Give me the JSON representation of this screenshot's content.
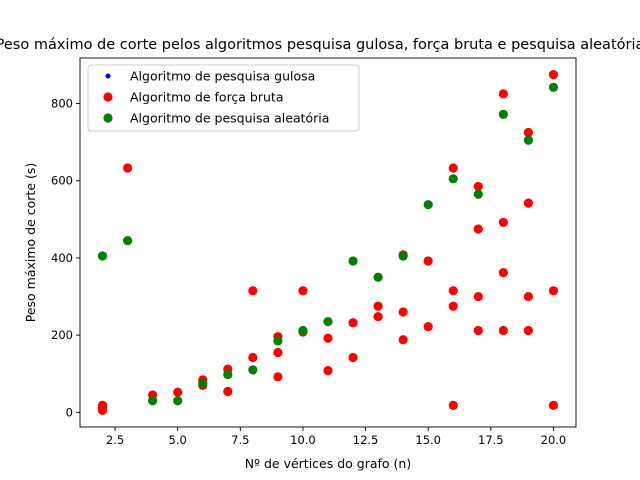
{
  "chart_data": {
    "type": "scatter",
    "title": "Peso máximo de corte pelos algoritmos pesquisa gulosa, força bruta e pesquisa aleatória",
    "xlabel": "Nº de vértices do grafo (n)",
    "ylabel": "Peso máximo de corte (s)",
    "xlim": [
      1.1,
      20.9
    ],
    "ylim": [
      -38,
      918
    ],
    "xticks": [
      2.5,
      5.0,
      7.5,
      10.0,
      12.5,
      15.0,
      17.5,
      20.0
    ],
    "xtick_labels": [
      "2.5",
      "5.0",
      "7.5",
      "10.0",
      "12.5",
      "15.0",
      "17.5",
      "20.0"
    ],
    "yticks": [
      0,
      200,
      400,
      600,
      800
    ],
    "ytick_labels": [
      "0",
      "200",
      "400",
      "600",
      "800"
    ],
    "grid": false,
    "legend_position": "upper-left",
    "series": [
      {
        "name": "Algoritmo de pesquisa gulosa",
        "color": "#0000ff",
        "marker_size": "small",
        "points": []
      },
      {
        "name": "Algoritmo de força bruta",
        "color": "#ff0000",
        "marker_size": "large",
        "points": [
          [
            2,
            18
          ],
          [
            2,
            12
          ],
          [
            2,
            5
          ],
          [
            3,
            633
          ],
          [
            4,
            45
          ],
          [
            5,
            52
          ],
          [
            6,
            84
          ],
          [
            6,
            70
          ],
          [
            7,
            112
          ],
          [
            7,
            54
          ],
          [
            8,
            142
          ],
          [
            8,
            315
          ],
          [
            9,
            196
          ],
          [
            9,
            155
          ],
          [
            9,
            92
          ],
          [
            10,
            315
          ],
          [
            10,
            208
          ],
          [
            11,
            192
          ],
          [
            11,
            108
          ],
          [
            12,
            232
          ],
          [
            12,
            142
          ],
          [
            13,
            275
          ],
          [
            13,
            248
          ],
          [
            14,
            408
          ],
          [
            14,
            260
          ],
          [
            14,
            188
          ],
          [
            15,
            392
          ],
          [
            15,
            222
          ],
          [
            16,
            633
          ],
          [
            16,
            315
          ],
          [
            16,
            275
          ],
          [
            16,
            18
          ],
          [
            17,
            585
          ],
          [
            17,
            475
          ],
          [
            17,
            300
          ],
          [
            17,
            212
          ],
          [
            18,
            825
          ],
          [
            18,
            492
          ],
          [
            18,
            362
          ],
          [
            18,
            212
          ],
          [
            19,
            725
          ],
          [
            19,
            542
          ],
          [
            19,
            300
          ],
          [
            19,
            212
          ],
          [
            20,
            875
          ],
          [
            20,
            315
          ],
          [
            20,
            18
          ]
        ]
      },
      {
        "name": "Algoritmo de pesquisa aleatória",
        "color": "#008000",
        "marker_size": "large",
        "points": [
          [
            2,
            405
          ],
          [
            3,
            445
          ],
          [
            4,
            30
          ],
          [
            5,
            30
          ],
          [
            6,
            75
          ],
          [
            7,
            98
          ],
          [
            8,
            110
          ],
          [
            9,
            185
          ],
          [
            10,
            212
          ],
          [
            11,
            235
          ],
          [
            12,
            392
          ],
          [
            13,
            350
          ],
          [
            14,
            405
          ],
          [
            15,
            538
          ],
          [
            16,
            605
          ],
          [
            17,
            565
          ],
          [
            18,
            772
          ],
          [
            19,
            705
          ],
          [
            20,
            842
          ]
        ]
      }
    ]
  }
}
